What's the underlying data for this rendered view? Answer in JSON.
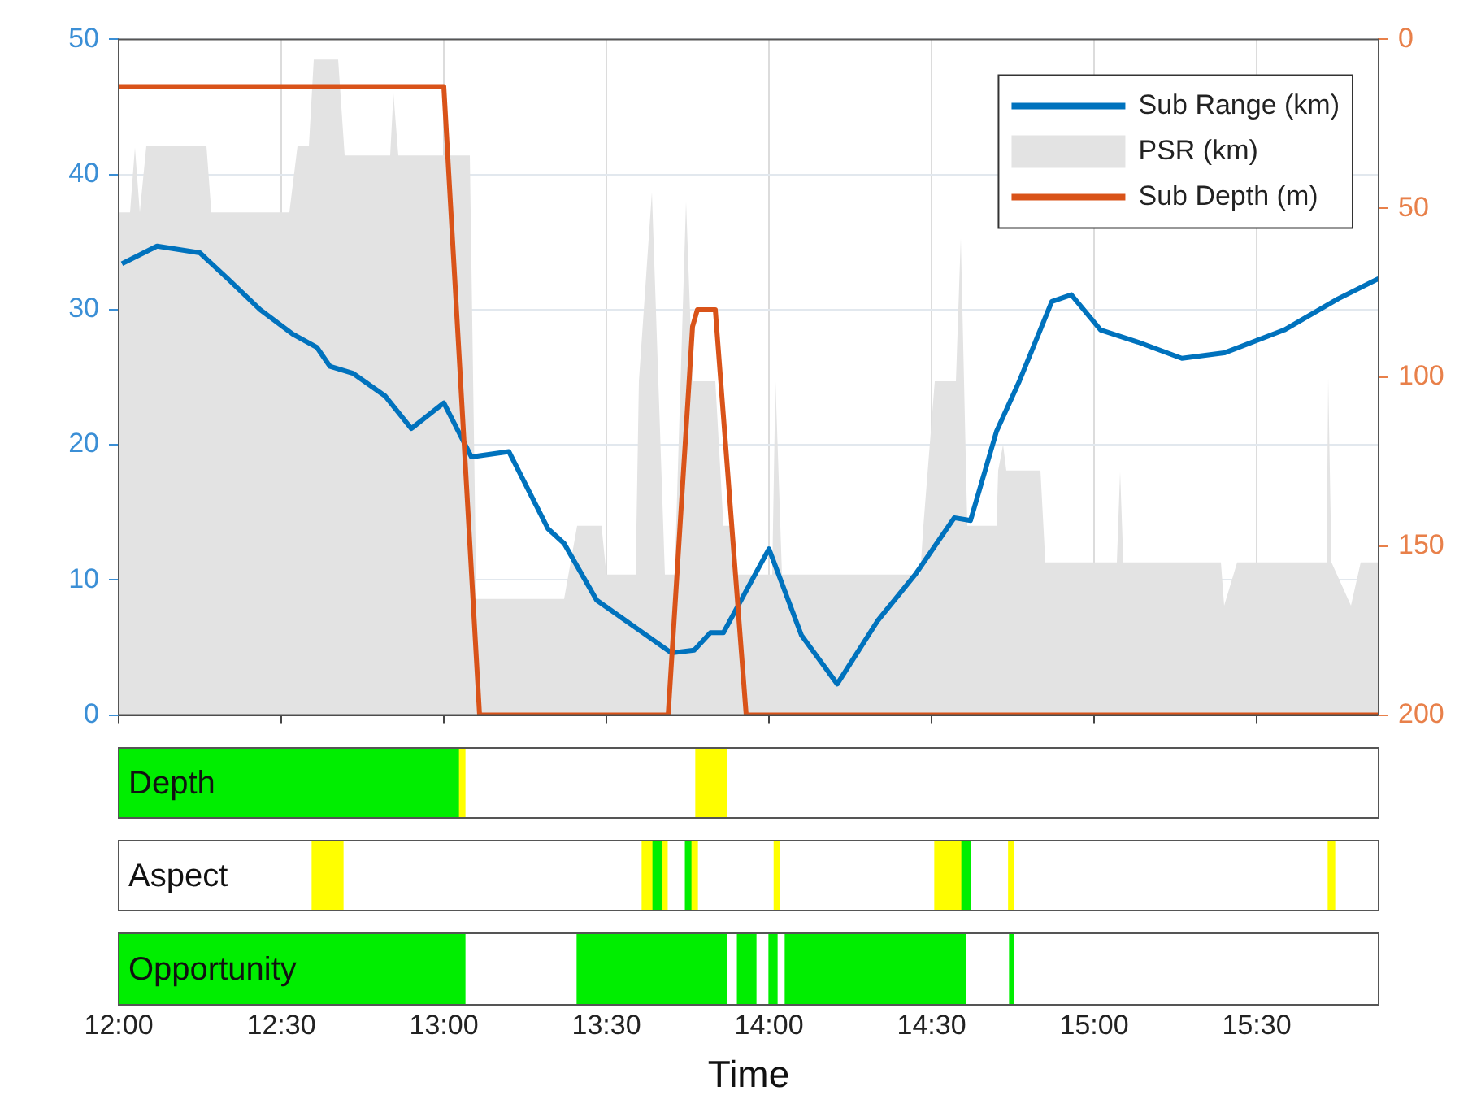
{
  "chart_data": [
    {
      "type": "line",
      "xlim": [
        12,
        15.875
      ],
      "xticks": [
        12,
        12.5,
        13,
        13.5,
        14,
        14.5,
        15,
        15.5
      ],
      "ylim": [
        0,
        50
      ],
      "yticks": [
        0,
        10,
        20,
        30,
        40,
        50
      ],
      "y2lim": [
        200,
        0
      ],
      "y2ticks": [
        0,
        50,
        100,
        150,
        200
      ],
      "tick_labels": "y",
      "grid": true,
      "legend": "top right",
      "series": [
        {
          "name": "Sub Range (km)",
          "type": "line",
          "color": "#0072bd",
          "x": [
            12.01,
            12.118,
            12.25,
            12.335,
            12.435,
            12.535,
            12.61,
            12.65,
            12.72,
            12.82,
            12.9,
            13.0,
            13.085,
            13.2,
            13.32,
            13.37,
            13.47,
            13.6,
            13.7,
            13.77,
            13.82,
            13.86,
            14.0,
            14.1,
            14.21,
            14.335,
            14.45,
            14.57,
            14.62,
            14.7,
            14.77,
            14.87,
            14.93,
            15.02,
            15.135,
            15.27,
            15.4,
            15.585,
            15.75,
            15.875
          ],
          "values": [
            33.4,
            34.7,
            34.2,
            32.3,
            30.0,
            28.2,
            27.2,
            25.8,
            25.3,
            23.6,
            21.2,
            23.1,
            19.1,
            19.5,
            13.8,
            12.7,
            8.5,
            6.3,
            4.6,
            4.8,
            6.1,
            6.1,
            12.3,
            5.9,
            2.3,
            7.0,
            10.4,
            14.6,
            14.4,
            21.0,
            24.7,
            30.6,
            31.1,
            28.5,
            27.6,
            26.4,
            26.8,
            28.5,
            30.8,
            32.3
          ]
        },
        {
          "name": "PSR (km)",
          "type": "area",
          "color": "#e3e3e3",
          "x": [
            12.0,
            12.035,
            12.05,
            12.065,
            12.085,
            12.27,
            12.285,
            12.525,
            12.55,
            12.585,
            12.6,
            12.675,
            12.695,
            12.835,
            12.845,
            12.86,
            13.08,
            13.1,
            13.37,
            13.41,
            13.485,
            13.5,
            13.59,
            13.6,
            13.64,
            13.68,
            13.71,
            13.745,
            13.765,
            13.835,
            13.86,
            13.88,
            13.89,
            14.01,
            14.02,
            14.04,
            14.465,
            14.475,
            14.51,
            14.575,
            14.59,
            14.61,
            14.7,
            14.705,
            14.72,
            14.73,
            14.835,
            14.85,
            15.07,
            15.08,
            15.09,
            15.39,
            15.4,
            15.44,
            15.715,
            15.72,
            15.73,
            15.79,
            15.82,
            15.875
          ],
          "values": [
            37.2,
            37.2,
            42,
            37.2,
            42.1,
            42.1,
            37.2,
            37.2,
            42.1,
            42.1,
            48.5,
            48.5,
            41.4,
            41.4,
            46,
            41.4,
            41.4,
            8.6,
            8.6,
            14,
            14,
            10.4,
            10.4,
            24.7,
            38.7,
            10.4,
            10.4,
            38,
            24.7,
            24.7,
            14,
            14,
            10.4,
            10.4,
            24.7,
            10.4,
            10.4,
            14,
            24.7,
            24.7,
            35.3,
            14,
            14,
            18.1,
            20,
            18.1,
            18.1,
            11.3,
            11.3,
            18,
            11.3,
            11.3,
            8.1,
            11.3,
            11.3,
            25,
            11.3,
            8.1,
            11.3,
            11.3
          ]
        },
        {
          "name": "Sub Depth (m)",
          "type": "line",
          "axis": "y2",
          "color": "#d95319",
          "x": [
            12.0,
            13.0,
            13.11,
            13.69,
            13.765,
            13.78,
            13.835,
            13.93,
            15.875
          ],
          "values": [
            14,
            14,
            200,
            200,
            85,
            80,
            80,
            200,
            200
          ]
        }
      ]
    },
    {
      "type": "bar",
      "orientation": "horizontal",
      "categories": [
        "Depth"
      ],
      "xlim": [
        12,
        15.875
      ],
      "xticks": [
        12,
        12.5,
        13,
        13.5,
        14,
        14.5,
        15,
        15.5
      ],
      "tick_labels": "y",
      "series": [
        {
          "color": "#00ee00",
          "base": [
            12.0
          ],
          "values": [
            1.045
          ]
        },
        {
          "color": "#ffff00",
          "base": [
            13.045
          ],
          "values": [
            0.02
          ]
        },
        {
          "color": "#ffff00",
          "base": [
            13.775
          ],
          "values": [
            0.095
          ]
        }
      ]
    },
    {
      "type": "bar",
      "orientation": "horizontal",
      "categories": [
        "Aspect"
      ],
      "xlim": [
        12,
        15.875
      ],
      "xticks": [
        12,
        12.5,
        13,
        13.5,
        14,
        14.5,
        15,
        15.5
      ],
      "tick_labels": "y",
      "series": [
        {
          "color": "#ffff00",
          "base": [
            12.595
          ],
          "values": [
            0.095
          ]
        },
        {
          "color": "#ffff00",
          "base": [
            13.61
          ],
          "values": [
            0.03
          ]
        },
        {
          "color": "#00ee00",
          "base": [
            13.64
          ],
          "values": [
            0.03
          ]
        },
        {
          "color": "#ffff00",
          "base": [
            13.67
          ],
          "values": [
            0.017
          ]
        },
        {
          "color": "#00ee00",
          "base": [
            13.743
          ],
          "values": [
            0.017
          ]
        },
        {
          "color": "#ffff00",
          "base": [
            13.76
          ],
          "values": [
            0.02
          ]
        },
        {
          "color": "#ffff00",
          "base": [
            14.016
          ],
          "values": [
            0.017
          ]
        },
        {
          "color": "#ffff00",
          "base": [
            14.51
          ],
          "values": [
            0.08
          ]
        },
        {
          "color": "#00ee00",
          "base": [
            14.59
          ],
          "values": [
            0.03
          ]
        },
        {
          "color": "#ffff00",
          "base": [
            14.737
          ],
          "values": [
            0.016
          ]
        },
        {
          "color": "#ffff00",
          "base": [
            15.72
          ],
          "values": [
            0.02
          ]
        }
      ]
    },
    {
      "type": "bar",
      "orientation": "horizontal",
      "categories": [
        "Opportunity"
      ],
      "xlim": [
        12,
        15.875
      ],
      "xticks": [
        {
          "value": 12,
          "label": "12:00"
        },
        {
          "value": 12.5,
          "label": "12:30"
        },
        {
          "value": 13,
          "label": "13:00"
        },
        {
          "value": 13.5,
          "label": "13:30"
        },
        {
          "value": 14,
          "label": "14:00"
        },
        {
          "value": 14.5,
          "label": "14:30"
        },
        {
          "value": 15,
          "label": "15:00"
        },
        {
          "value": 15.5,
          "label": "15:30"
        }
      ],
      "xlabel": "Time",
      "series": [
        {
          "color": "#00ee00",
          "base": [
            12.0
          ],
          "values": [
            1.065
          ]
        },
        {
          "color": "#00ee00",
          "base": [
            13.41
          ],
          "values": [
            0.46
          ]
        },
        {
          "color": "#00ee00",
          "base": [
            13.903
          ],
          "values": [
            0.057
          ]
        },
        {
          "color": "#00ee00",
          "base": [
            14.0
          ],
          "values": [
            0.025
          ]
        },
        {
          "color": "#00ee00",
          "base": [
            14.05
          ],
          "values": [
            0.555
          ]
        },
        {
          "color": "#00ee00",
          "base": [
            14.74
          ],
          "values": [
            0.013
          ]
        }
      ]
    }
  ]
}
